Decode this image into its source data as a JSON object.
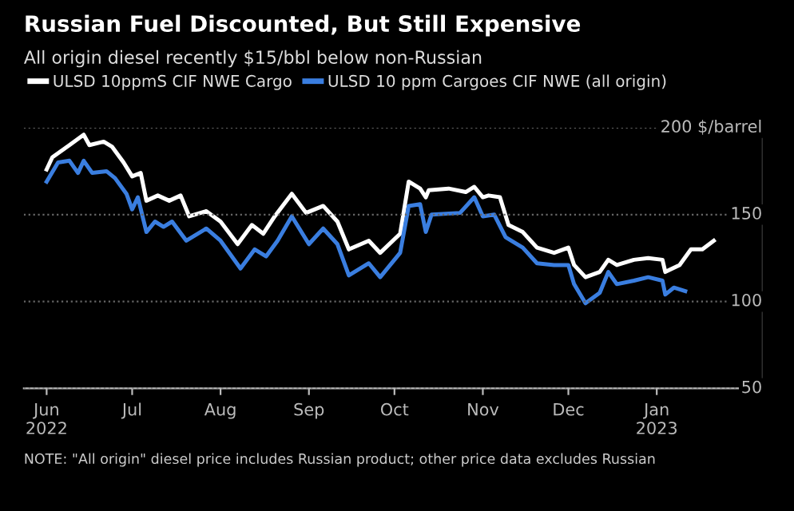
{
  "chart_data": {
    "type": "line",
    "title": "Russian Fuel Discounted, But Still Expensive",
    "subtitle": "All origin diesel recently $15/bbl below non-Russian",
    "series": [
      {
        "name": "ULSD 10ppmS CIF NWE Cargo",
        "color": "#ffffff",
        "x": [
          "2022-06-01",
          "2022-06-03",
          "2022-06-09",
          "2022-06-14",
          "2022-06-16",
          "2022-06-21",
          "2022-06-24",
          "2022-06-28",
          "2022-07-01",
          "2022-07-04",
          "2022-07-06",
          "2022-07-10",
          "2022-07-14",
          "2022-07-18",
          "2022-07-21",
          "2022-07-27",
          "2022-08-01",
          "2022-08-07",
          "2022-08-12",
          "2022-08-16",
          "2022-08-20",
          "2022-08-26",
          "2022-08-31",
          "2022-09-06",
          "2022-09-11",
          "2022-09-15",
          "2022-09-22",
          "2022-09-26",
          "2022-10-03",
          "2022-10-06",
          "2022-10-10",
          "2022-10-12",
          "2022-10-13",
          "2022-10-20",
          "2022-10-26",
          "2022-10-29",
          "2022-11-01",
          "2022-11-03",
          "2022-11-07",
          "2022-11-10",
          "2022-11-15",
          "2022-11-20",
          "2022-11-26",
          "2022-12-01",
          "2022-12-03",
          "2022-12-07",
          "2022-12-12",
          "2022-12-15",
          "2022-12-18",
          "2022-12-24",
          "2022-12-29",
          "2023-01-03",
          "2023-01-04",
          "2023-01-09",
          "2023-01-13",
          "2023-01-17",
          "2023-01-21"
        ],
        "values": [
          176,
          183,
          190,
          196,
          190,
          192,
          189,
          180,
          172,
          174,
          158,
          161,
          158,
          161,
          149,
          152,
          146,
          133,
          144,
          139,
          149,
          162,
          151,
          155,
          146,
          130,
          135,
          128,
          139,
          169,
          165,
          160,
          164,
          165,
          163,
          166,
          160,
          161,
          160,
          144,
          140,
          131,
          128,
          131,
          121,
          114,
          117,
          124,
          121,
          124,
          125,
          124,
          117,
          121,
          130,
          130,
          135
        ]
      },
      {
        "name": "ULSD 10 ppm Cargoes CIF NWE (all origin)",
        "color": "#3a7ee0",
        "x": [
          "2022-06-01",
          "2022-06-05",
          "2022-06-09",
          "2022-06-12",
          "2022-06-14",
          "2022-06-17",
          "2022-06-22",
          "2022-06-25",
          "2022-06-29",
          "2022-07-01",
          "2022-07-03",
          "2022-07-06",
          "2022-07-09",
          "2022-07-12",
          "2022-07-15",
          "2022-07-20",
          "2022-07-27",
          "2022-08-01",
          "2022-08-08",
          "2022-08-13",
          "2022-08-17",
          "2022-08-21",
          "2022-08-26",
          "2022-09-01",
          "2022-09-06",
          "2022-09-11",
          "2022-09-15",
          "2022-09-22",
          "2022-09-26",
          "2022-10-03",
          "2022-10-06",
          "2022-10-10",
          "2022-10-12",
          "2022-10-14",
          "2022-10-24",
          "2022-10-29",
          "2022-11-01",
          "2022-11-05",
          "2022-11-09",
          "2022-11-15",
          "2022-11-20",
          "2022-11-26",
          "2022-12-01",
          "2022-12-03",
          "2022-12-07",
          "2022-12-12",
          "2022-12-15",
          "2022-12-18",
          "2022-12-24",
          "2022-12-29",
          "2023-01-03",
          "2023-01-04",
          "2023-01-07",
          "2023-01-11"
        ],
        "values": [
          169,
          180,
          181,
          174,
          181,
          174,
          175,
          171,
          162,
          153,
          160,
          140,
          146,
          143,
          146,
          135,
          142,
          135,
          119,
          130,
          126,
          135,
          149,
          133,
          142,
          133,
          115,
          122,
          114,
          128,
          155,
          156,
          140,
          150,
          151,
          160,
          149,
          150,
          137,
          131,
          122,
          121,
          121,
          110,
          99,
          105,
          117,
          110,
          112,
          114,
          112,
          104,
          108,
          106
        ]
      }
    ],
    "xlim": [
      "2022-05-24",
      "2023-02-07"
    ],
    "xticks": [
      {
        "value": "2022-06-01",
        "label": "Jun\n2022"
      },
      {
        "value": "2022-07-01",
        "label": "Jul"
      },
      {
        "value": "2022-08-01",
        "label": "Aug"
      },
      {
        "value": "2022-09-01",
        "label": "Sep"
      },
      {
        "value": "2022-10-01",
        "label": "Oct"
      },
      {
        "value": "2022-11-01",
        "label": "Nov"
      },
      {
        "value": "2022-12-01",
        "label": "Dec"
      },
      {
        "value": "2023-01-01",
        "label": "Jan\n2023"
      }
    ],
    "ylim": [
      50,
      200
    ],
    "yticks": [
      50,
      100,
      150,
      {
        "value": 200,
        "label": "200 $/barrel"
      }
    ],
    "grid": "y",
    "legend": "top left",
    "line_style": "solid",
    "marker": "none",
    "annotations": [
      "NOTE: \"All origin\" diesel price includes Russian product; other price data excludes Russian"
    ]
  }
}
